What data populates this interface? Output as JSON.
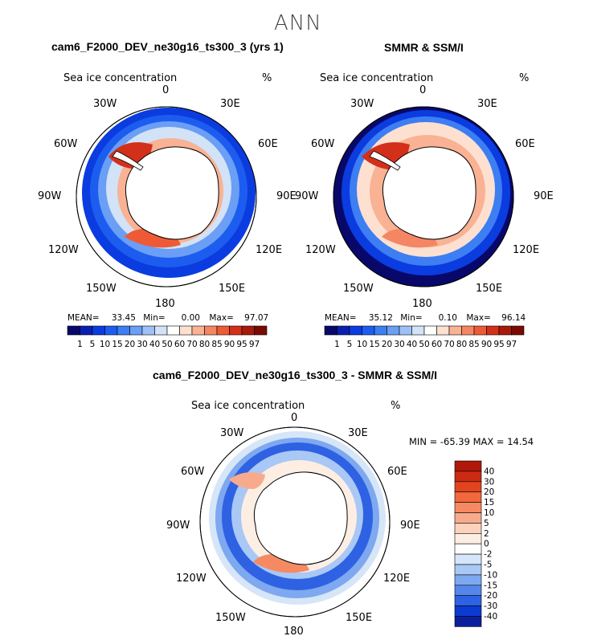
{
  "page": {
    "title": "ANN"
  },
  "panels": [
    {
      "title": "cam6_F2000_DEV_ne30g16_ts300_3 (yrs 1)",
      "field": "Sea ice concentration",
      "units": "%",
      "stats": {
        "mean_label": "MEAN=",
        "mean": "33.45",
        "min_label": "Min=",
        "min": "0.00",
        "max_label": "Max=",
        "max": "97.07"
      }
    },
    {
      "title": "SMMR & SSM/I",
      "field": "Sea ice concentration",
      "units": "%",
      "stats": {
        "mean_label": "MEAN=",
        "mean": "35.12",
        "min_label": "Min=",
        "min": "0.10",
        "max_label": "Max=",
        "max": "96.14"
      }
    },
    {
      "title": "cam6_F2000_DEV_ne30g16_ts300_3 - SMMR & SSM/I",
      "field": "Sea ice concentration",
      "units": "%",
      "minmax_text": "MIN = -65.39 MAX =  14.54"
    }
  ],
  "map_labels": {
    "n0": "0",
    "n30w": "30W",
    "n30e": "30E",
    "n60w": "60W",
    "n60e": "60E",
    "n90w": "90W",
    "n90e": "90E",
    "n120w": "120W",
    "n120e": "120E",
    "n150w": "150W",
    "n150e": "150E",
    "n180": "180"
  },
  "colorbar_abs": {
    "labels": [
      "1",
      "5",
      "10",
      "15",
      "20",
      "30",
      "40",
      "50",
      "60",
      "70",
      "80",
      "85",
      "90",
      "95",
      "97"
    ],
    "colors": [
      "#08086b",
      "#0a1fb0",
      "#0b3ce0",
      "#1c5df0",
      "#3d7ef3",
      "#6b9ef5",
      "#9dc0f7",
      "#d2e3f7",
      "#ffffff",
      "#fde0d0",
      "#f9b293",
      "#f58663",
      "#ee5a36",
      "#d2301a",
      "#a81a0c",
      "#7a0a04"
    ]
  },
  "colorbar_diff": {
    "labels": [
      "40",
      "30",
      "20",
      "15",
      "10",
      "5",
      "2",
      "0",
      "-2",
      "-5",
      "-10",
      "-15",
      "-20",
      "-30",
      "-40"
    ],
    "colors": [
      "#b0180a",
      "#cc2a12",
      "#e24420",
      "#f0683c",
      "#f58a62",
      "#f8ab8c",
      "#fcd2bd",
      "#fdeee4",
      "#ffffff",
      "#d6e6f8",
      "#a9c8f5",
      "#7ea8f0",
      "#5586ec",
      "#2e62e3",
      "#0c3bd1",
      "#0a1f9c"
    ]
  },
  "colors": {
    "land": "#ffffff",
    "outline": "#000000",
    "text": "#000000"
  }
}
